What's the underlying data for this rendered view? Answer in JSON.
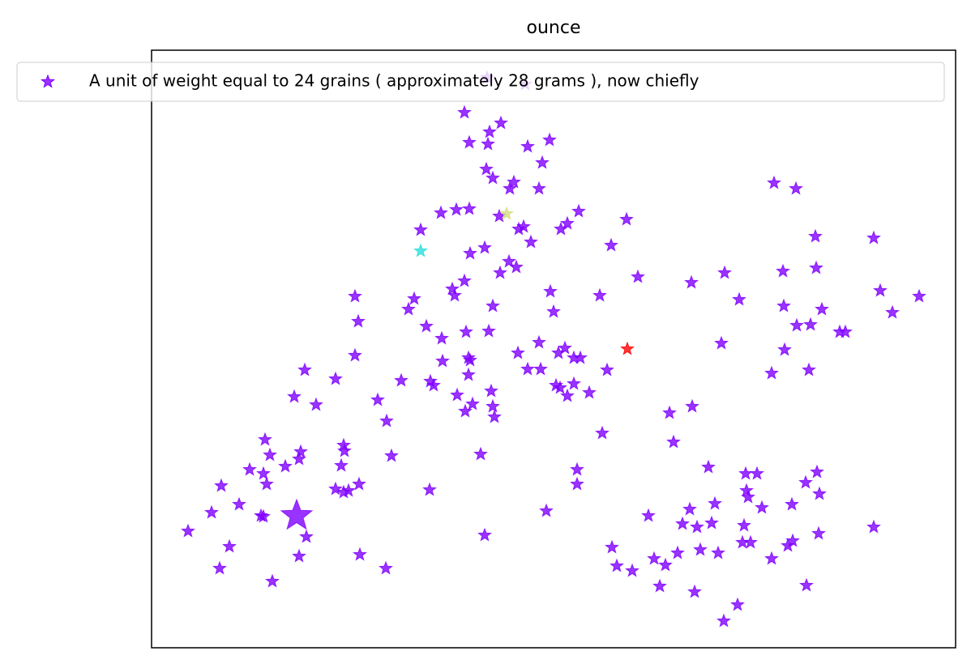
{
  "chart_data": {
    "type": "scatter",
    "title": "ounce",
    "xlim": [
      0,
      992
    ],
    "ylim": [
      0,
      738
    ],
    "legend": "upper-center",
    "series": [
      {
        "name": "A unit of weight equal to 24 grains ( approximately 28 grams ), now chiefly",
        "color": "#8000ff",
        "marker_size": 8,
        "x": [
          386,
          417,
          431,
          392,
          415,
          464,
          491,
          413,
          421,
          482,
          447,
          442,
          478,
          414,
          461,
          357,
          376,
          392,
          429,
          453,
          459,
          468,
          505,
          513,
          527,
          586,
          567,
          332,
          393,
          411,
          441,
          450,
          430,
          386,
          371,
          374,
          324,
          317,
          339,
          358,
          388,
          416,
          421,
          492,
          496,
          553,
          600,
          666,
          707,
          725,
          768,
          795,
          819,
          891,
          779,
          820,
          899,
          947,
          914,
          780,
          827,
          796,
          813,
          849,
          856,
          703,
          781,
          765,
          811,
          251,
          255,
          251,
          189,
          227,
          176,
          203,
          279,
          308,
          344,
          348,
          359,
          391,
          393,
          391,
          377,
          396,
          387,
          419,
          421,
          423,
          452,
          464,
          478,
          480,
          502,
          510,
          521,
          529,
          499,
          504,
          513,
          521,
          540,
          562,
          556,
          639,
          667,
          644,
          290,
          296,
          406,
          140,
          146,
          121,
          138,
          142,
          165,
          184,
          182,
          237,
          238,
          234,
          256,
          227,
          237,
          243,
          86,
          108,
          74,
          135,
          138,
          45,
          96,
          84,
          149,
          182,
          191,
          257,
          289,
          343,
          411,
          487,
          525,
          525,
          687,
          733,
          747,
          821,
          807,
          824,
          734,
          736,
          753,
          790,
          664,
          695,
          613,
          655,
          673,
          691,
          731,
          891,
          823,
          791,
          785,
          729,
          739,
          765,
          699,
          677,
          649,
          620,
          634,
          568,
          574,
          593,
          627,
          670,
          723,
          706,
          808
        ],
        "values": [
          661,
          637,
          648,
          624,
          622,
          619,
          627,
          591,
          580,
          599,
          575,
          567,
          567,
          704,
          696,
          537,
          541,
          542,
          533,
          517,
          520,
          501,
          517,
          524,
          539,
          529,
          497,
          516,
          487,
          494,
          477,
          470,
          463,
          453,
          443,
          435,
          431,
          418,
          397,
          382,
          390,
          391,
          422,
          440,
          415,
          435,
          458,
          451,
          463,
          430,
          574,
          567,
          508,
          506,
          465,
          469,
          441,
          434,
          414,
          422,
          418,
          398,
          399,
          390,
          390,
          376,
          368,
          339,
          343,
          434,
          403,
          361,
          343,
          332,
          310,
          300,
          306,
          330,
          329,
          324,
          354,
          358,
          355,
          337,
          312,
          301,
          292,
          317,
          298,
          285,
          364,
          344,
          377,
          344,
          364,
          370,
          358,
          358,
          324,
          321,
          311,
          326,
          315,
          343,
          265,
          290,
          298,
          254,
          280,
          237,
          239,
          257,
          238,
          220,
          215,
          202,
          224,
          242,
          233,
          250,
          243,
          225,
          202,
          196,
          192,
          194,
          200,
          177,
          167,
          163,
          162,
          144,
          125,
          98,
          82,
          113,
          137,
          115,
          98,
          195,
          139,
          169,
          220,
          202,
          223,
          215,
          215,
          217,
          204,
          190,
          194,
          186,
          173,
          177,
          171,
          178,
          163,
          153,
          149,
          154,
          151,
          149,
          141,
          132,
          126,
          130,
          130,
          110,
          117,
          121,
          117,
          110,
          102,
          124,
          101,
          95,
          76,
          69,
          53,
          33,
          77
        ]
      },
      {
        "color": "#8000ff",
        "marker_size": 20,
        "x": [
          179
        ],
        "values": [
          163
        ]
      },
      {
        "color": "#2adddd",
        "marker_size": 8,
        "x": [
          332
        ],
        "values": [
          490
        ]
      },
      {
        "color": "#d4dd80",
        "marker_size": 8,
        "x": [
          438
        ],
        "values": [
          536
        ]
      },
      {
        "color": "#ff0000",
        "marker_size": 8,
        "x": [
          587
        ],
        "values": [
          369
        ]
      }
    ]
  }
}
